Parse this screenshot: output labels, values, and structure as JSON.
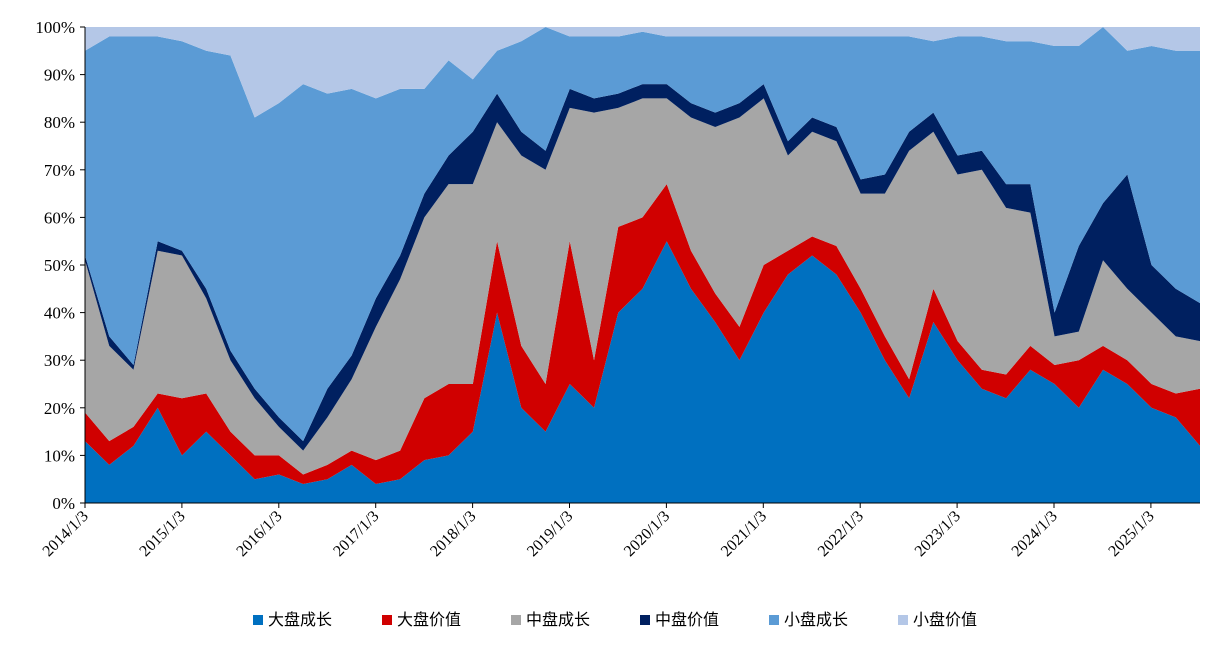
{
  "chart_data": {
    "type": "area",
    "stacked": "percent",
    "title": "",
    "xlabel": "",
    "ylabel": "",
    "ylim": [
      0,
      100
    ],
    "y_ticks": [
      "0%",
      "10%",
      "20%",
      "30%",
      "40%",
      "50%",
      "60%",
      "70%",
      "80%",
      "90%",
      "100%"
    ],
    "x_ticks": [
      "2014/1/3",
      "2015/1/3",
      "2016/1/3",
      "2017/1/3",
      "2018/1/3",
      "2019/1/3",
      "2020/1/3",
      "2021/1/3",
      "2022/1/3",
      "2023/1/3",
      "2024/1/3",
      "2025/1/3"
    ],
    "x": [
      "2014/1",
      "2014/4",
      "2014/7",
      "2014/10",
      "2015/1",
      "2015/4",
      "2015/7",
      "2015/10",
      "2016/1",
      "2016/4",
      "2016/7",
      "2016/10",
      "2017/1",
      "2017/4",
      "2017/7",
      "2017/10",
      "2018/1",
      "2018/4",
      "2018/7",
      "2018/10",
      "2019/1",
      "2019/4",
      "2019/7",
      "2019/10",
      "2020/1",
      "2020/4",
      "2020/7",
      "2020/10",
      "2021/1",
      "2021/4",
      "2021/7",
      "2021/10",
      "2022/1",
      "2022/4",
      "2022/7",
      "2022/10",
      "2023/1",
      "2023/4",
      "2023/7",
      "2023/10",
      "2024/1",
      "2024/4",
      "2024/7",
      "2024/10",
      "2025/1",
      "2025/4",
      "2025/7"
    ],
    "legend_position": "bottom",
    "series": [
      {
        "name": "大盘成长",
        "color": "#0070C0",
        "values": [
          13,
          8,
          12,
          20,
          10,
          15,
          10,
          5,
          6,
          4,
          5,
          8,
          4,
          5,
          9,
          10,
          15,
          40,
          20,
          15,
          25,
          20,
          40,
          45,
          55,
          45,
          38,
          30,
          40,
          48,
          52,
          48,
          40,
          30,
          22,
          38,
          30,
          24,
          22,
          28,
          25,
          20,
          28,
          25,
          20,
          18,
          12
        ]
      },
      {
        "name": "大盘价值",
        "color": "#D00000",
        "values": [
          6,
          5,
          4,
          3,
          12,
          8,
          5,
          5,
          4,
          2,
          3,
          3,
          5,
          6,
          13,
          15,
          10,
          15,
          13,
          10,
          30,
          10,
          18,
          15,
          12,
          8,
          6,
          7,
          10,
          5,
          4,
          6,
          5,
          5,
          4,
          7,
          4,
          4,
          5,
          5,
          4,
          10,
          5,
          5,
          5,
          5,
          12
        ]
      },
      {
        "name": "中盘成长",
        "color": "#A6A6A6",
        "values": [
          32,
          20,
          12,
          30,
          30,
          20,
          15,
          12,
          6,
          5,
          10,
          15,
          28,
          36,
          38,
          42,
          42,
          25,
          40,
          45,
          28,
          52,
          25,
          25,
          18,
          28,
          35,
          44,
          35,
          20,
          22,
          22,
          20,
          30,
          48,
          33,
          35,
          42,
          35,
          28,
          6,
          6,
          18,
          15,
          15,
          12,
          10
        ]
      },
      {
        "name": "中盘价值",
        "color": "#002060",
        "values": [
          1,
          2,
          1,
          2,
          1,
          2,
          2,
          2,
          2,
          2,
          6,
          5,
          6,
          5,
          5,
          6,
          11,
          6,
          5,
          4,
          4,
          3,
          3,
          3,
          3,
          3,
          3,
          3,
          3,
          3,
          3,
          3,
          3,
          4,
          4,
          4,
          4,
          4,
          5,
          6,
          5,
          18,
          12,
          24,
          10,
          10,
          8
        ]
      },
      {
        "name": "小盘成长",
        "color": "#5B9BD5",
        "values": [
          43,
          63,
          69,
          43,
          44,
          50,
          62,
          57,
          66,
          75,
          62,
          56,
          42,
          35,
          22,
          20,
          11,
          9,
          19,
          26,
          11,
          13,
          12,
          11,
          10,
          14,
          16,
          14,
          10,
          22,
          17,
          19,
          30,
          29,
          20,
          15,
          25,
          24,
          30,
          30,
          56,
          42,
          37,
          26,
          46,
          50,
          53
        ]
      },
      {
        "name": "小盘价值",
        "color": "#B4C7E7",
        "values": [
          5,
          2,
          2,
          2,
          3,
          5,
          6,
          19,
          16,
          12,
          14,
          13,
          15,
          13,
          13,
          7,
          11,
          5,
          3,
          0,
          2,
          2,
          2,
          1,
          2,
          2,
          2,
          2,
          2,
          2,
          2,
          2,
          2,
          2,
          2,
          3,
          2,
          2,
          3,
          3,
          4,
          4,
          0,
          5,
          4,
          5,
          5
        ]
      }
    ]
  }
}
